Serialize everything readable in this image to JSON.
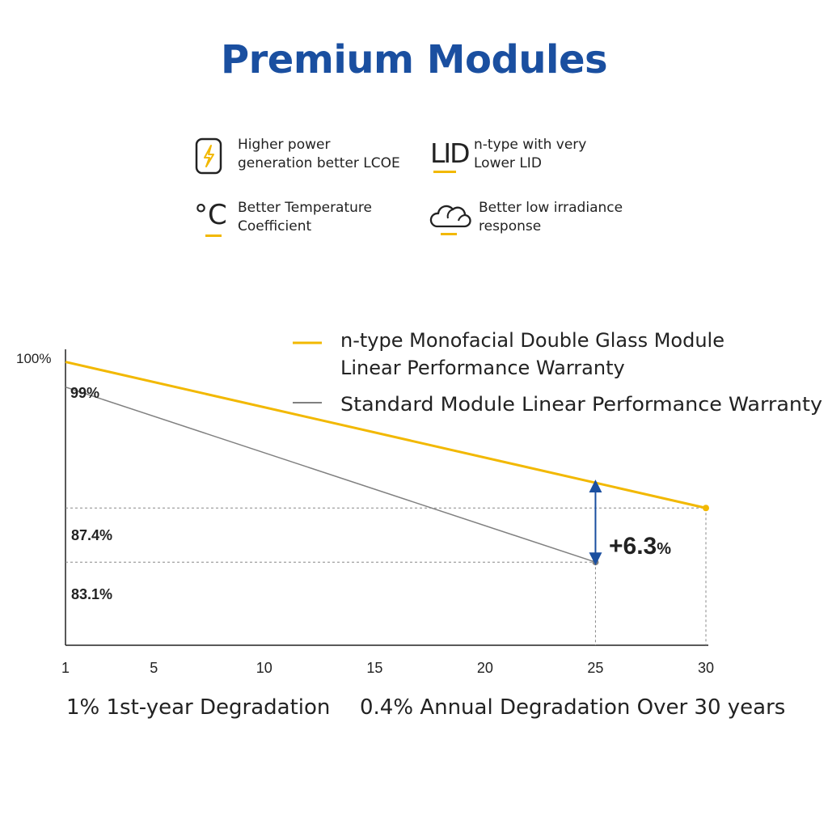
{
  "title": "Premium Modules",
  "features": [
    {
      "icon": "lightning-icon",
      "lines": [
        "Higher power",
        "generation better LCOE"
      ]
    },
    {
      "icon": "lid-icon",
      "icon_text": "LID",
      "lines": [
        "n-type with very",
        "Lower LID"
      ]
    },
    {
      "icon": "celsius-icon",
      "icon_text": "°C",
      "lines": [
        "Better Temperature",
        "Coefficient"
      ]
    },
    {
      "icon": "cloud-icon",
      "lines": [
        "Better low irradiance",
        "response"
      ]
    }
  ],
  "colors": {
    "title": "#1a4fa0",
    "accent": "#f2b800",
    "standard": "#808080",
    "arrow": "#1a4fa0"
  },
  "chart_data": {
    "type": "line",
    "x_ticks": [
      1,
      5,
      10,
      15,
      20,
      25,
      30
    ],
    "y_tick_label": "100%",
    "xlim": [
      1,
      30
    ],
    "ylim": [
      76.5,
      100
    ],
    "series": [
      {
        "name": "n-type Monofacial Double Glass Module Linear Performance Warranty",
        "legend_lines": [
          "n-type Monofacial Double Glass Module",
          "Linear Performance Warranty"
        ],
        "color": "#f2b800",
        "x": [
          1,
          25,
          30
        ],
        "y": [
          99,
          89.4,
          87.4
        ]
      },
      {
        "name": "Standard Module Linear Performance Warranty",
        "legend_lines": [
          "Standard Module Linear Performance Warranty"
        ],
        "color": "#808080",
        "x": [
          1,
          25
        ],
        "y": [
          97,
          83.1
        ]
      }
    ],
    "annotations": {
      "label_99": "99%",
      "label_874": "87.4%",
      "label_831": "83.1%",
      "gain_main": "+6.3",
      "gain_unit": "%"
    }
  },
  "footer": {
    "left": "1% 1st-year Degradation",
    "right": "0.4% Annual Degradation Over 30 years"
  }
}
